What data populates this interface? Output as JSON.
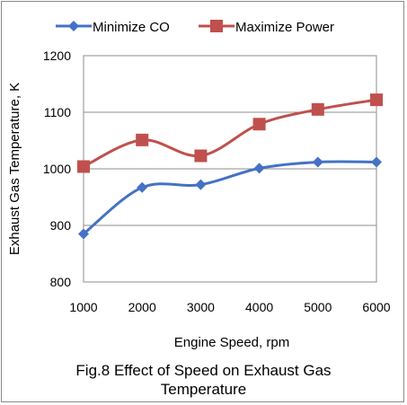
{
  "chart_data": {
    "type": "line",
    "x": [
      1000,
      2000,
      3000,
      4000,
      5000,
      6000
    ],
    "series": [
      {
        "name": "Minimize CO",
        "values": [
          885,
          967,
          972,
          1001,
          1012,
          1012
        ],
        "color": "#4472C4",
        "marker": "diamond"
      },
      {
        "name": "Maximize Power",
        "values": [
          1004,
          1051,
          1023,
          1079,
          1105,
          1122
        ],
        "color": "#C0504D",
        "marker": "square"
      }
    ],
    "xlabel": "Engine Speed, rpm",
    "ylabel": "Exhaust Gas Temperature, K",
    "xlim": [
      1000,
      6000
    ],
    "ylim": [
      800,
      1200
    ],
    "yticks": [
      800,
      900,
      1000,
      1100,
      1200
    ],
    "xticks": [
      1000,
      2000,
      3000,
      4000,
      5000,
      6000
    ],
    "grid": "horizontal",
    "legend_position": "top",
    "smooth": true
  },
  "caption": {
    "line1": "Fig.8 Effect of Speed on Exhaust Gas",
    "line2": "Temperature"
  }
}
